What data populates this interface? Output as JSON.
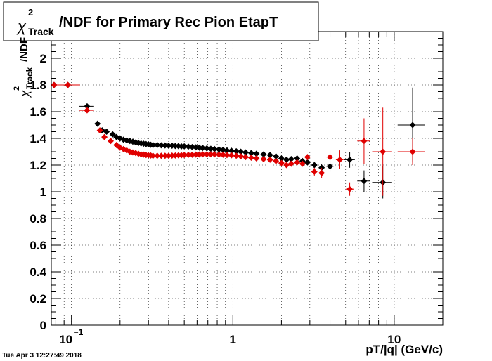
{
  "chart_data": {
    "type": "scatter",
    "title": "/NDF for Primary Rec Pion EtapT",
    "title_symbol": "χ",
    "title_sup": "2",
    "title_sub": "Track",
    "xlabel": "pT/|q| (GeV/c)",
    "ylabel": "/NDF",
    "ylabel_symbol": "χ",
    "ylabel_sup": "2",
    "ylabel_sub": "Track",
    "x_scale": "log",
    "xlim": [
      0.075,
      20
    ],
    "ylim": [
      0,
      2.2
    ],
    "grid": true,
    "x_ticks": [
      {
        "value": 0.1,
        "base": "10",
        "exp": "−1"
      },
      {
        "value": 1,
        "base": "1",
        "exp": ""
      },
      {
        "value": 10,
        "base": "10",
        "exp": ""
      }
    ],
    "y_ticks": [
      "0",
      "0.2",
      "0.4",
      "0.6",
      "0.8",
      "1",
      "1.2",
      "1.4",
      "1.6",
      "1.8",
      "2"
    ],
    "series": [
      {
        "color": "#000000",
        "points": [
          {
            "x": 0.078,
            "y": 1.8,
            "xerr": 0.008,
            "yerr": 0.005
          },
          {
            "x": 0.095,
            "y": 1.8,
            "xerr": 0.018,
            "yerr": 0.005
          },
          {
            "x": 0.125,
            "y": 1.64,
            "xerr": 0.013,
            "yerr": 0.01
          },
          {
            "x": 0.145,
            "y": 1.51
          },
          {
            "x": 0.155,
            "y": 1.46
          },
          {
            "x": 0.165,
            "y": 1.45
          },
          {
            "x": 0.18,
            "y": 1.43
          },
          {
            "x": 0.19,
            "y": 1.41
          },
          {
            "x": 0.2,
            "y": 1.4
          },
          {
            "x": 0.21,
            "y": 1.39
          },
          {
            "x": 0.22,
            "y": 1.385
          },
          {
            "x": 0.23,
            "y": 1.38
          },
          {
            "x": 0.24,
            "y": 1.375
          },
          {
            "x": 0.25,
            "y": 1.37
          },
          {
            "x": 0.26,
            "y": 1.365
          },
          {
            "x": 0.27,
            "y": 1.362
          },
          {
            "x": 0.28,
            "y": 1.36
          },
          {
            "x": 0.29,
            "y": 1.357
          },
          {
            "x": 0.3,
            "y": 1.355
          },
          {
            "x": 0.31,
            "y": 1.352
          },
          {
            "x": 0.32,
            "y": 1.35
          },
          {
            "x": 0.34,
            "y": 1.35
          },
          {
            "x": 0.36,
            "y": 1.348
          },
          {
            "x": 0.38,
            "y": 1.347
          },
          {
            "x": 0.4,
            "y": 1.345
          },
          {
            "x": 0.42,
            "y": 1.345
          },
          {
            "x": 0.44,
            "y": 1.343
          },
          {
            "x": 0.46,
            "y": 1.342
          },
          {
            "x": 0.48,
            "y": 1.34
          },
          {
            "x": 0.5,
            "y": 1.34
          },
          {
            "x": 0.53,
            "y": 1.338
          },
          {
            "x": 0.56,
            "y": 1.335
          },
          {
            "x": 0.59,
            "y": 1.333
          },
          {
            "x": 0.62,
            "y": 1.33
          },
          {
            "x": 0.65,
            "y": 1.328
          },
          {
            "x": 0.69,
            "y": 1.325
          },
          {
            "x": 0.73,
            "y": 1.322
          },
          {
            "x": 0.77,
            "y": 1.32
          },
          {
            "x": 0.82,
            "y": 1.317
          },
          {
            "x": 0.87,
            "y": 1.314
          },
          {
            "x": 0.92,
            "y": 1.31
          },
          {
            "x": 0.98,
            "y": 1.307
          },
          {
            "x": 1.05,
            "y": 1.303
          },
          {
            "x": 1.12,
            "y": 1.3
          },
          {
            "x": 1.2,
            "y": 1.295
          },
          {
            "x": 1.3,
            "y": 1.29
          },
          {
            "x": 1.4,
            "y": 1.285
          },
          {
            "x": 1.55,
            "y": 1.28
          },
          {
            "x": 1.7,
            "y": 1.275
          },
          {
            "x": 1.85,
            "y": 1.265
          },
          {
            "x": 2.0,
            "y": 1.25
          },
          {
            "x": 2.15,
            "y": 1.24
          },
          {
            "x": 2.3,
            "y": 1.245
          },
          {
            "x": 2.5,
            "y": 1.25
          },
          {
            "x": 2.7,
            "y": 1.23
          },
          {
            "x": 2.9,
            "y": 1.22
          },
          {
            "x": 3.2,
            "y": 1.2,
            "xerr": 0.12,
            "yerr": 0.02
          },
          {
            "x": 3.55,
            "y": 1.18,
            "xerr": 0.15,
            "yerr": 0.03
          },
          {
            "x": 4.0,
            "y": 1.19,
            "xerr": 0.2,
            "yerr": 0.04
          },
          {
            "x": 5.3,
            "y": 1.24,
            "xerr": 0.4,
            "yerr": 0.06
          },
          {
            "x": 6.5,
            "y": 1.08,
            "xerr": 0.6,
            "yerr": 0.08
          },
          {
            "x": 8.5,
            "y": 1.07,
            "xerr": 1.2,
            "yerr": 0.12
          },
          {
            "x": 13,
            "y": 1.5,
            "xerr": 2.5,
            "yerr": 0.28
          }
        ]
      },
      {
        "color": "#e00000",
        "points": [
          {
            "x": 0.078,
            "y": 1.8,
            "xerr": 0.008,
            "yerr": 0.005
          },
          {
            "x": 0.095,
            "y": 1.8,
            "xerr": 0.018,
            "yerr": 0.005
          },
          {
            "x": 0.125,
            "y": 1.61,
            "xerr": 0.013,
            "yerr": 0.01
          },
          {
            "x": 0.15,
            "y": 1.46
          },
          {
            "x": 0.16,
            "y": 1.41
          },
          {
            "x": 0.175,
            "y": 1.38
          },
          {
            "x": 0.19,
            "y": 1.35
          },
          {
            "x": 0.2,
            "y": 1.33
          },
          {
            "x": 0.21,
            "y": 1.32
          },
          {
            "x": 0.22,
            "y": 1.31
          },
          {
            "x": 0.23,
            "y": 1.3
          },
          {
            "x": 0.24,
            "y": 1.295
          },
          {
            "x": 0.25,
            "y": 1.29
          },
          {
            "x": 0.26,
            "y": 1.285
          },
          {
            "x": 0.27,
            "y": 1.28
          },
          {
            "x": 0.28,
            "y": 1.278
          },
          {
            "x": 0.29,
            "y": 1.275
          },
          {
            "x": 0.3,
            "y": 1.273
          },
          {
            "x": 0.31,
            "y": 1.272
          },
          {
            "x": 0.32,
            "y": 1.27
          },
          {
            "x": 0.34,
            "y": 1.27
          },
          {
            "x": 0.36,
            "y": 1.27
          },
          {
            "x": 0.38,
            "y": 1.27
          },
          {
            "x": 0.4,
            "y": 1.27
          },
          {
            "x": 0.42,
            "y": 1.271
          },
          {
            "x": 0.44,
            "y": 1.272
          },
          {
            "x": 0.46,
            "y": 1.273
          },
          {
            "x": 0.48,
            "y": 1.274
          },
          {
            "x": 0.5,
            "y": 1.275
          },
          {
            "x": 0.53,
            "y": 1.276
          },
          {
            "x": 0.56,
            "y": 1.277
          },
          {
            "x": 0.59,
            "y": 1.278
          },
          {
            "x": 0.62,
            "y": 1.279
          },
          {
            "x": 0.65,
            "y": 1.28
          },
          {
            "x": 0.69,
            "y": 1.28
          },
          {
            "x": 0.73,
            "y": 1.28
          },
          {
            "x": 0.77,
            "y": 1.28
          },
          {
            "x": 0.82,
            "y": 1.278
          },
          {
            "x": 0.87,
            "y": 1.277
          },
          {
            "x": 0.92,
            "y": 1.275
          },
          {
            "x": 0.98,
            "y": 1.273
          },
          {
            "x": 1.05,
            "y": 1.27
          },
          {
            "x": 1.12,
            "y": 1.265
          },
          {
            "x": 1.2,
            "y": 1.26
          },
          {
            "x": 1.3,
            "y": 1.255
          },
          {
            "x": 1.4,
            "y": 1.25
          },
          {
            "x": 1.55,
            "y": 1.245
          },
          {
            "x": 1.7,
            "y": 1.24
          },
          {
            "x": 1.85,
            "y": 1.23
          },
          {
            "x": 2.0,
            "y": 1.215
          },
          {
            "x": 2.15,
            "y": 1.2
          },
          {
            "x": 2.3,
            "y": 1.21
          },
          {
            "x": 2.5,
            "y": 1.22
          },
          {
            "x": 2.7,
            "y": 1.21
          },
          {
            "x": 2.9,
            "y": 1.26,
            "xerr": 0.1,
            "yerr": 0.02
          },
          {
            "x": 3.2,
            "y": 1.15,
            "xerr": 0.12,
            "yerr": 0.03
          },
          {
            "x": 3.55,
            "y": 1.14,
            "xerr": 0.15,
            "yerr": 0.04
          },
          {
            "x": 4.0,
            "y": 1.26,
            "xerr": 0.2,
            "yerr": 0.05
          },
          {
            "x": 4.6,
            "y": 1.24,
            "xerr": 0.25,
            "yerr": 0.07
          },
          {
            "x": 5.3,
            "y": 1.02,
            "xerr": 0.3,
            "yerr": 0.05
          },
          {
            "x": 6.5,
            "y": 1.38,
            "xerr": 0.6,
            "yerr": 0.17
          },
          {
            "x": 8.5,
            "y": 1.3,
            "xerr": 1.2,
            "yerr": 0.33
          },
          {
            "x": 13,
            "y": 1.3,
            "xerr": 2.5,
            "yerr": 0.1
          }
        ]
      }
    ]
  },
  "footer": {
    "timestamp": "Tue Apr  3 12:27:49 2018"
  }
}
